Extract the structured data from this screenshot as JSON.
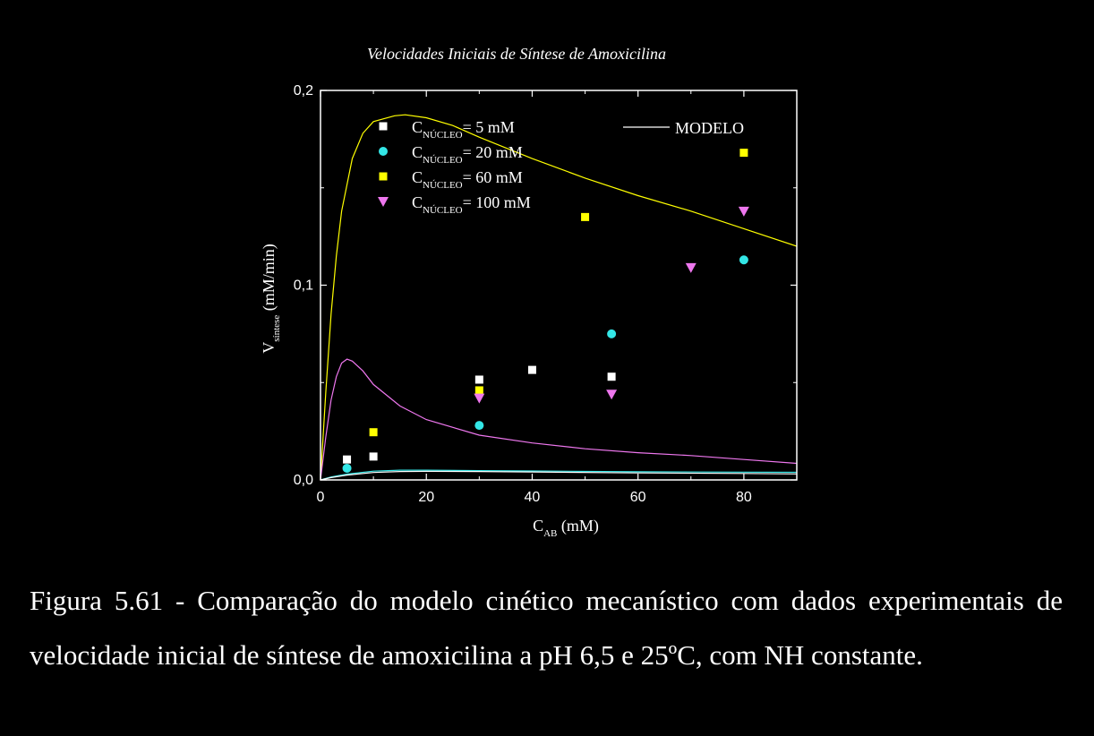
{
  "chart_data": {
    "type": "scatter",
    "title": "Velocidades Iniciais de Síntese de Amoxicilina",
    "xlabel": {
      "main": "C",
      "sub": "AB",
      "unit": " (mM)"
    },
    "ylabel": {
      "main": "V",
      "sub": "síntese",
      "unit": " (mM/min)"
    },
    "xlim": [
      0,
      90
    ],
    "ylim": [
      0,
      0.2
    ],
    "xticks": [
      {
        "v": 0,
        "label": "0"
      },
      {
        "v": 20,
        "label": "20"
      },
      {
        "v": 40,
        "label": "40"
      },
      {
        "v": 60,
        "label": "60"
      },
      {
        "v": 80,
        "label": "80"
      }
    ],
    "yticks": [
      {
        "v": 0,
        "label": "0,0"
      },
      {
        "v": 0.1,
        "label": "0,1"
      },
      {
        "v": 0.2,
        "label": "0,2"
      }
    ],
    "grid": false,
    "legend_position": "top-left",
    "series": [
      {
        "name": "C",
        "sub": "NÚCLEO",
        "rest": "= 5 mM",
        "marker": "square",
        "color": "#ffffff",
        "x": [
          5,
          10,
          30,
          40,
          55
        ],
        "y": [
          0.0105,
          0.012,
          0.0515,
          0.0565,
          0.053
        ]
      },
      {
        "name": "C",
        "sub": "NÚCLEO",
        "rest": "= 20 mM",
        "marker": "circle",
        "color": "#33e6e6",
        "x": [
          5,
          30,
          55,
          80
        ],
        "y": [
          0.006,
          0.028,
          0.075,
          0.113
        ]
      },
      {
        "name": "C",
        "sub": "NÚCLEO",
        "rest": "= 60 mM",
        "marker": "square",
        "color": "#ffff00",
        "x": [
          10,
          30,
          50,
          80
        ],
        "y": [
          0.0245,
          0.046,
          0.135,
          0.168
        ]
      },
      {
        "name": "C",
        "sub": "NÚCLEO",
        "rest": "= 100 mM",
        "marker": "triangle-down",
        "color": "#ee77ee",
        "x": [
          30,
          55,
          70,
          80
        ],
        "y": [
          0.042,
          0.044,
          0.109,
          0.138
        ]
      }
    ],
    "model": {
      "name": "MODELO",
      "curves": [
        {
          "color": "#ffff00",
          "x": [
            0,
            1,
            2,
            3,
            4,
            6,
            8,
            10,
            14,
            16,
            20,
            25,
            30,
            40,
            50,
            60,
            70,
            80,
            90
          ],
          "y": [
            0,
            0.045,
            0.085,
            0.115,
            0.138,
            0.165,
            0.178,
            0.184,
            0.187,
            0.1875,
            0.186,
            0.182,
            0.176,
            0.165,
            0.155,
            0.146,
            0.138,
            0.129,
            0.12
          ]
        },
        {
          "color": "#ee77ee",
          "x": [
            0,
            1,
            2,
            3,
            4,
            5,
            6,
            8,
            10,
            15,
            20,
            30,
            40,
            50,
            60,
            70,
            80,
            90
          ],
          "y": [
            0,
            0.022,
            0.041,
            0.053,
            0.06,
            0.062,
            0.061,
            0.056,
            0.049,
            0.038,
            0.031,
            0.023,
            0.019,
            0.016,
            0.014,
            0.0125,
            0.0105,
            0.0085
          ]
        },
        {
          "color": "#33e6e6",
          "x": [
            0,
            2,
            5,
            10,
            15,
            20,
            30,
            40,
            60,
            80,
            90
          ],
          "y": [
            0,
            0.0015,
            0.003,
            0.0045,
            0.005,
            0.005,
            0.0048,
            0.0046,
            0.0042,
            0.004,
            0.0039
          ]
        },
        {
          "color": "#ffffff",
          "x": [
            0,
            2,
            5,
            10,
            15,
            20,
            30,
            40,
            60,
            80,
            90
          ],
          "y": [
            0,
            0.0012,
            0.0025,
            0.0038,
            0.0043,
            0.0044,
            0.0043,
            0.0041,
            0.0036,
            0.0033,
            0.0031
          ]
        }
      ]
    }
  },
  "caption": "Figura 5.61 - Comparação do modelo cinético mecanístico com dados experimentais de velocidade inicial de síntese de amoxicilina a pH 6,5 e 25ºC, com NH constante."
}
